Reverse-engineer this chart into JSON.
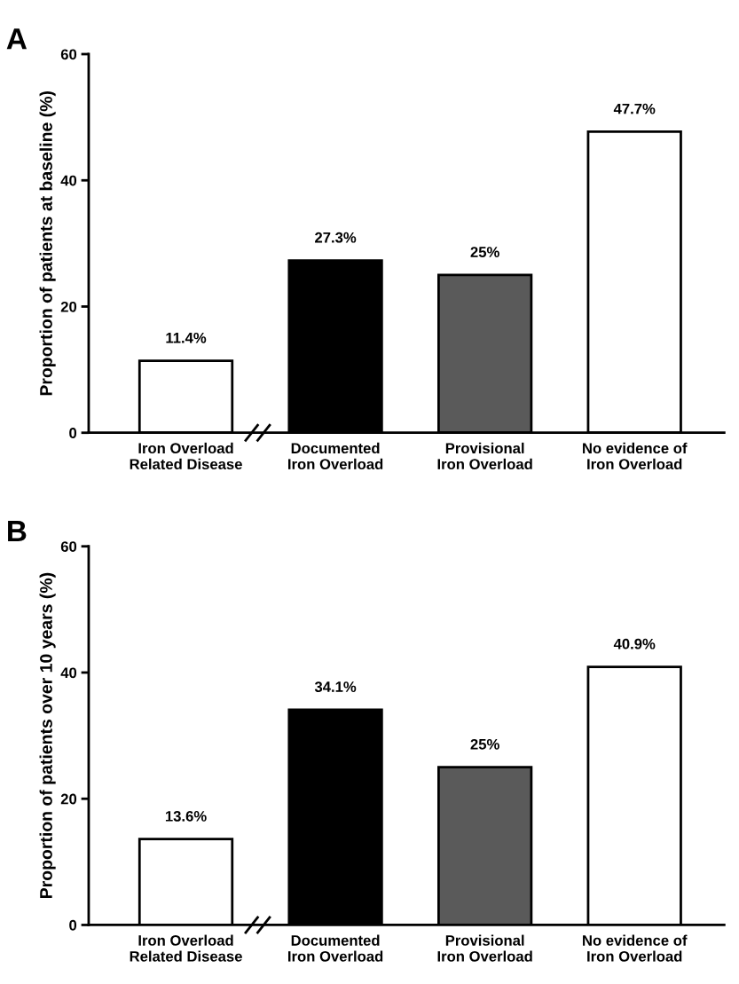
{
  "chart_data": [
    {
      "type": "bar",
      "title": "A",
      "ylabel": "Proportion of patients at baseline (%)",
      "categories": [
        "Iron Overload\nRelated Disease",
        "Documented\nIron Overload",
        "Provisional\nIron Overload",
        "No evidence of\nIron Overload"
      ],
      "values": [
        11.4,
        27.3,
        25,
        47.7
      ],
      "colors": [
        "#ffffff",
        "#000000",
        "#5a5a5a",
        "#ffffff"
      ],
      "value_labels": [
        "11.4%",
        "27.3%",
        "25%",
        "47.7%"
      ],
      "ylim": [
        0,
        60
      ],
      "yticks": [
        0,
        20,
        40,
        60
      ],
      "grid": false,
      "legend": false
    },
    {
      "type": "bar",
      "title": "B",
      "ylabel": "Proportion of patients over 10 years (%)",
      "categories": [
        "Iron Overload\nRelated Disease",
        "Documented\nIron Overload",
        "Provisional\nIron Overload",
        "No evidence of\nIron Overload"
      ],
      "values": [
        13.6,
        34.1,
        25,
        40.9
      ],
      "colors": [
        "#ffffff",
        "#000000",
        "#5a5a5a",
        "#ffffff"
      ],
      "value_labels": [
        "13.6%",
        "34.1%",
        "25%",
        "40.9%"
      ],
      "ylim": [
        0,
        60
      ],
      "yticks": [
        0,
        20,
        40,
        60
      ],
      "grid": false,
      "legend": false
    }
  ]
}
